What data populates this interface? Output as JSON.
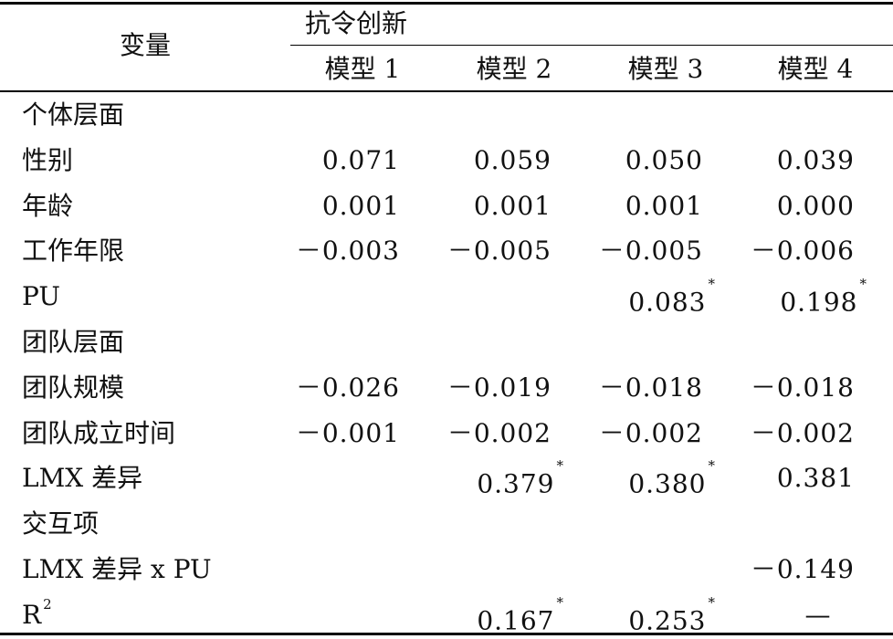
{
  "header": {
    "variable_label": "变量",
    "group_label": "抗令创新",
    "models": [
      "模型 1",
      "模型 2",
      "模型 3",
      "模型 4"
    ]
  },
  "rows": [
    {
      "label": "个体层面",
      "values": [
        "",
        "",
        "",
        ""
      ],
      "stars": [
        "",
        "",
        "",
        ""
      ]
    },
    {
      "label": "性别",
      "values": [
        "0.071",
        "0.059",
        "0.050",
        "0.039"
      ],
      "stars": [
        "",
        "",
        "",
        ""
      ]
    },
    {
      "label": "年龄",
      "values": [
        "0.001",
        "0.001",
        "0.001",
        "0.000"
      ],
      "stars": [
        "",
        "",
        "",
        ""
      ]
    },
    {
      "label": "工作年限",
      "values": [
        "－0.003",
        "－0.005",
        "－0.005",
        "－0.006"
      ],
      "stars": [
        "",
        "",
        "",
        ""
      ]
    },
    {
      "label": "PU",
      "values": [
        "",
        "",
        "0.083",
        "0.198"
      ],
      "stars": [
        "",
        "",
        "*",
        "*"
      ]
    },
    {
      "label": "团队层面",
      "values": [
        "",
        "",
        "",
        ""
      ],
      "stars": [
        "",
        "",
        "",
        ""
      ]
    },
    {
      "label": "团队规模",
      "values": [
        "－0.026",
        "－0.019",
        "－0.018",
        "－0.018"
      ],
      "stars": [
        "",
        "",
        "",
        ""
      ]
    },
    {
      "label": "团队成立时间",
      "values": [
        "－0.001",
        "－0.002",
        "－0.002",
        "－0.002"
      ],
      "stars": [
        "",
        "",
        "",
        ""
      ]
    },
    {
      "label": "LMX 差异",
      "values": [
        "",
        "0.379",
        "0.380",
        "0.381"
      ],
      "stars": [
        "",
        "*",
        "*",
        ""
      ]
    },
    {
      "label": "交互项",
      "values": [
        "",
        "",
        "",
        ""
      ],
      "stars": [
        "",
        "",
        "",
        ""
      ]
    },
    {
      "label": "LMX 差异 x PU",
      "values": [
        "",
        "",
        "",
        "－0.149"
      ],
      "stars": [
        "",
        "",
        "",
        ""
      ]
    },
    {
      "label": "R",
      "label_sup": "2",
      "values": [
        "",
        "0.167",
        "0.253",
        "—"
      ],
      "stars": [
        "",
        "*",
        "*",
        ""
      ]
    }
  ]
}
